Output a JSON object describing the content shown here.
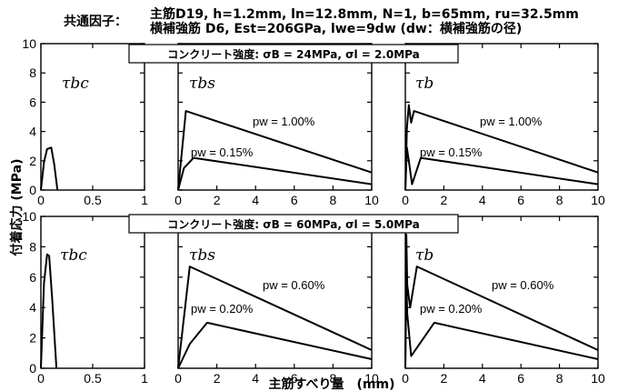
{
  "header": {
    "label": "共通因子：",
    "line1": "主筋D19, h=1.2mm, ln=12.8mm, N=1, b=65mm, ru=32.5mm",
    "line2": "横補強筋 D6, Est=206GPa, lwe=9dw (dw：横補強筋の径)"
  },
  "conditions": [
    "コンクリート強度: σB = 24MPa, σl = 2.0MPa",
    "コンクリート強度: σB = 60MPa, σl = 5.0MPa"
  ],
  "panel_labels": {
    "bc": "τbc",
    "bs": "τbs",
    "b": "τb"
  },
  "y_axis_label": "付着応力 (MPa)",
  "x_axis_label": "主筋すべり量　(mm)",
  "chart_data": [
    {
      "type": "line",
      "row": 0,
      "panel": "τbc",
      "xlim": [
        0,
        1
      ],
      "ylim": [
        0,
        10
      ],
      "xticks": [
        0,
        0.5,
        1
      ],
      "xtick_labels": [
        "0",
        "0.5",
        "1"
      ],
      "yticks": [
        0,
        2,
        4,
        6,
        8,
        10
      ],
      "ytick_labels": [
        "0",
        "2",
        "4",
        "6",
        "8",
        "10"
      ],
      "series": [
        {
          "x": [
            0,
            0.03,
            0.06,
            0.1,
            0.13,
            0.16
          ],
          "y": [
            0,
            1.9,
            2.8,
            2.9,
            1.7,
            0
          ]
        }
      ]
    },
    {
      "type": "line",
      "row": 0,
      "panel": "τbs",
      "xlim": [
        0,
        10
      ],
      "ylim": [
        0,
        10
      ],
      "xticks": [
        0,
        2,
        4,
        6,
        8,
        10
      ],
      "xtick_labels": [
        "0",
        "2",
        "4",
        "6",
        "8",
        "10"
      ],
      "yticks": [
        0,
        2,
        4,
        6,
        8,
        10
      ],
      "ytick_labels": [],
      "series": [
        {
          "name": "pw = 1.00%",
          "x": [
            0,
            0.4,
            10
          ],
          "y": [
            0,
            5.4,
            1.2
          ]
        },
        {
          "name": "pw = 0.15%",
          "x": [
            0,
            0.3,
            0.8,
            10
          ],
          "y": [
            0,
            1.5,
            2.2,
            0.4
          ]
        }
      ]
    },
    {
      "type": "line",
      "row": 0,
      "panel": "τb",
      "xlim": [
        0,
        10
      ],
      "ylim": [
        0,
        10
      ],
      "xticks": [
        0,
        2,
        4,
        6,
        8,
        10
      ],
      "xtick_labels": [
        "0",
        "2",
        "4",
        "6",
        "8",
        "10"
      ],
      "yticks": [
        0,
        2,
        4,
        6,
        8,
        10
      ],
      "ytick_labels": [],
      "series": [
        {
          "name": "pw = 1.00%",
          "x": [
            0,
            0.08,
            0.18,
            0.3,
            0.45,
            10
          ],
          "y": [
            0,
            4.2,
            5.8,
            4.6,
            5.4,
            1.2
          ]
        },
        {
          "name": "pw = 0.15%",
          "x": [
            0,
            0.08,
            0.18,
            0.35,
            0.8,
            10
          ],
          "y": [
            0,
            2.9,
            2.0,
            0.4,
            2.2,
            0.4
          ]
        }
      ]
    },
    {
      "type": "line",
      "row": 1,
      "panel": "τbc",
      "xlim": [
        0,
        1
      ],
      "ylim": [
        0,
        10
      ],
      "xticks": [
        0,
        0.5,
        1
      ],
      "xtick_labels": [
        "0",
        "0.5",
        "1"
      ],
      "yticks": [
        0,
        2,
        4,
        6,
        8,
        10
      ],
      "ytick_labels": [
        "0",
        "2",
        "4",
        "6",
        "8",
        "10"
      ],
      "series": [
        {
          "x": [
            0,
            0.03,
            0.06,
            0.08,
            0.11,
            0.15
          ],
          "y": [
            0,
            5.6,
            7.5,
            7.4,
            4.5,
            0
          ]
        }
      ]
    },
    {
      "type": "line",
      "row": 1,
      "panel": "τbs",
      "xlim": [
        0,
        10
      ],
      "ylim": [
        0,
        10
      ],
      "xticks": [
        0,
        2,
        4,
        6,
        8,
        10
      ],
      "xtick_labels": [
        "0",
        "2",
        "4",
        "6",
        "8",
        "10"
      ],
      "yticks": [
        0,
        2,
        4,
        6,
        8,
        10
      ],
      "ytick_labels": [],
      "series": [
        {
          "name": "pw = 0.60%",
          "x": [
            0,
            0.6,
            10
          ],
          "y": [
            0,
            6.7,
            1.2
          ]
        },
        {
          "name": "pw = 0.20%",
          "x": [
            0,
            0.6,
            1.5,
            10
          ],
          "y": [
            0,
            1.6,
            3.0,
            0.6
          ]
        }
      ]
    },
    {
      "type": "line",
      "row": 1,
      "panel": "τb",
      "xlim": [
        0,
        10
      ],
      "ylim": [
        0,
        10
      ],
      "xticks": [
        0,
        2,
        4,
        6,
        8,
        10
      ],
      "xtick_labels": [
        "0",
        "2",
        "4",
        "6",
        "8",
        "10"
      ],
      "yticks": [
        0,
        2,
        4,
        6,
        8,
        10
      ],
      "ytick_labels": [],
      "series": [
        {
          "name": "pw = 0.60%",
          "x": [
            0,
            0.05,
            0.1,
            0.25,
            0.6,
            10
          ],
          "y": [
            0,
            8.8,
            5.5,
            4.0,
            6.7,
            1.2
          ]
        },
        {
          "name": "pw = 0.20%",
          "x": [
            0,
            0.05,
            0.1,
            0.3,
            1.5,
            10
          ],
          "y": [
            0,
            6.0,
            3.6,
            0.8,
            3.0,
            0.6
          ]
        }
      ]
    }
  ]
}
